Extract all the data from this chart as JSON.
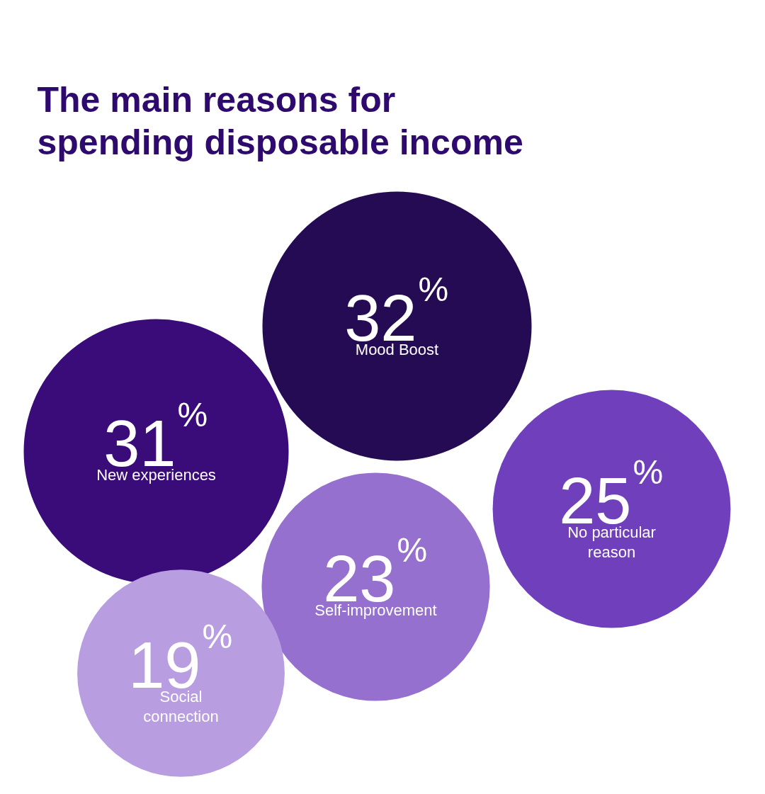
{
  "chart_data": {
    "type": "other",
    "title": "The main reasons for spending disposable income",
    "categories": [
      "Mood Boost",
      "New experiences",
      "No particular reason",
      "Self-improvement",
      "Social connection"
    ],
    "values": [
      32,
      31,
      25,
      23,
      19
    ],
    "value_labels": [
      "32%",
      "31%",
      "25%",
      "23%",
      "19%"
    ],
    "colors": [
      "#250a54",
      "#3a0c7a",
      "#7040bc",
      "#9570cf",
      "#b89ee0"
    ]
  }
}
